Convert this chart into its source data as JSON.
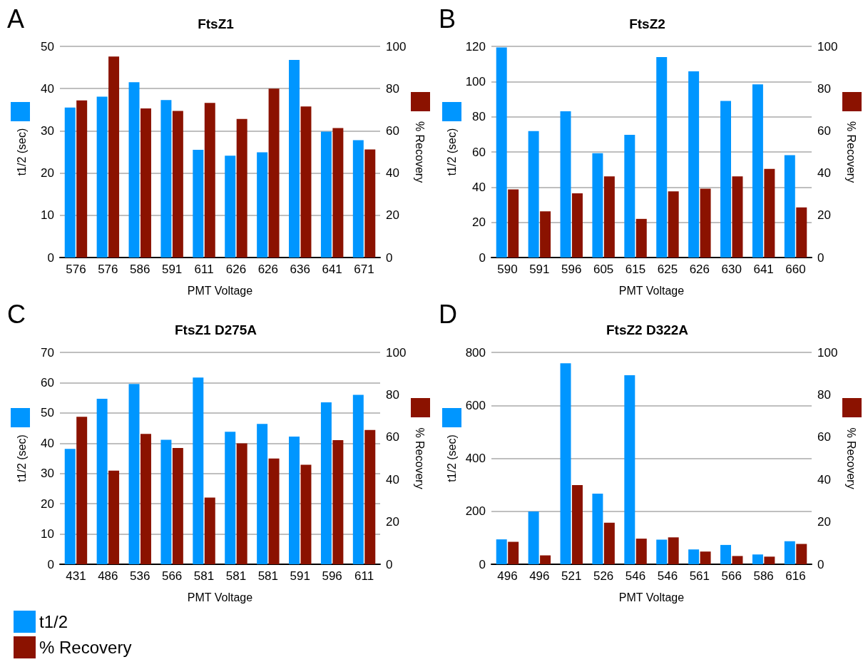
{
  "chart_data": [
    {
      "type": "bar",
      "title": "FtsZ1",
      "annotations": [
        "A"
      ],
      "xlabel": "PMT Voltage",
      "ylabel": "t1/2 (sec)",
      "y2label": "% Recovery",
      "categories": [
        "576",
        "576",
        "586",
        "591",
        "611",
        "626",
        "626",
        "636",
        "641",
        "671"
      ],
      "series": [
        {
          "color": "#0096ff",
          "values": [
            35.5,
            38.1,
            41.5,
            37.3,
            25.5,
            24.1,
            24.9,
            46.8,
            29.8,
            27.8
          ]
        },
        {
          "color": "#8b1200",
          "axis": "y2",
          "values": [
            74.4,
            95.2,
            70.6,
            69.4,
            73.2,
            65.6,
            80,
            71.5,
            61.3,
            51.2
          ]
        }
      ],
      "ylim": [
        0,
        50
      ],
      "yticks": [
        0,
        10,
        20,
        30,
        40,
        50
      ],
      "y2lim": [
        0,
        100
      ],
      "y2ticks": [
        0,
        20,
        40,
        60,
        80,
        100
      ],
      "grid": "y",
      "legend": false
    },
    {
      "type": "bar",
      "title": "FtsZ2",
      "annotations": [
        "B"
      ],
      "xlabel": "PMT Voltage",
      "ylabel": "t1/2 (sec)",
      "y2label": "% Recovery",
      "categories": [
        "590",
        "591",
        "596",
        "605",
        "615",
        "625",
        "626",
        "630",
        "641",
        "660"
      ],
      "series": [
        {
          "color": "#0096ff",
          "values": [
            119.4,
            71.9,
            83.1,
            59.3,
            69.7,
            113.9,
            105.8,
            89,
            98.4,
            58.2
          ]
        },
        {
          "color": "#8b1200",
          "axis": "y2",
          "values": [
            32.3,
            21.9,
            30.4,
            38.4,
            18.3,
            31.3,
            32.6,
            38.4,
            42,
            23.7
          ]
        }
      ],
      "ylim": [
        0,
        120
      ],
      "yticks": [
        0,
        20,
        40,
        60,
        80,
        100,
        120
      ],
      "y2lim": [
        0,
        100
      ],
      "y2ticks": [
        0,
        20,
        40,
        60,
        80,
        100
      ],
      "grid": "y",
      "legend": false
    },
    {
      "type": "bar",
      "title": "FtsZ1 D275A",
      "annotations": [
        "C"
      ],
      "xlabel": "PMT Voltage",
      "ylabel": "t1/2 (sec)",
      "y2label": "% Recovery",
      "categories": [
        "431",
        "486",
        "536",
        "566",
        "581",
        "581",
        "581",
        "591",
        "596",
        "611"
      ],
      "series": [
        {
          "name": "t1/2",
          "color": "#0096ff",
          "values": [
            38.1,
            54.7,
            59.6,
            41.1,
            61.7,
            43.8,
            46.4,
            42.2,
            53.5,
            56.0
          ]
        },
        {
          "name": "% Recovery",
          "color": "#8b1200",
          "axis": "y2",
          "values": [
            69.6,
            44.2,
            61.5,
            54.9,
            31.5,
            57.1,
            49.9,
            47.0,
            58.6,
            63.4
          ]
        }
      ],
      "ylim": [
        0,
        70
      ],
      "yticks": [
        0,
        10,
        20,
        30,
        40,
        50,
        60,
        70
      ],
      "y2lim": [
        0,
        100
      ],
      "y2ticks": [
        0,
        20,
        40,
        60,
        80,
        100
      ],
      "grid": "y",
      "legend": "bottom left"
    },
    {
      "type": "bar",
      "title": "FtsZ2 D322A",
      "annotations": [
        "D"
      ],
      "xlabel": "PMT Voltage",
      "ylabel": "t1/2 (sec)",
      "y2label": "% Recovery",
      "categories": [
        "496",
        "496",
        "521",
        "526",
        "546",
        "546",
        "561",
        "566",
        "586",
        "616"
      ],
      "series": [
        {
          "color": "#0096ff",
          "values": [
            94,
            199,
            759,
            267,
            714,
            93,
            56,
            73,
            37,
            87
          ]
        },
        {
          "color": "#8b1200",
          "axis": "y2",
          "values": [
            10.6,
            4.2,
            37.4,
            19.6,
            12.1,
            12.7,
            6.0,
            3.9,
            3.6,
            9.6
          ]
        }
      ],
      "ylim": [
        0,
        800
      ],
      "yticks": [
        0,
        200,
        400,
        600,
        800
      ],
      "y2lim": [
        0,
        100
      ],
      "y2ticks": [
        0,
        20,
        40,
        60,
        80,
        100
      ],
      "grid": "y",
      "legend": false
    }
  ]
}
